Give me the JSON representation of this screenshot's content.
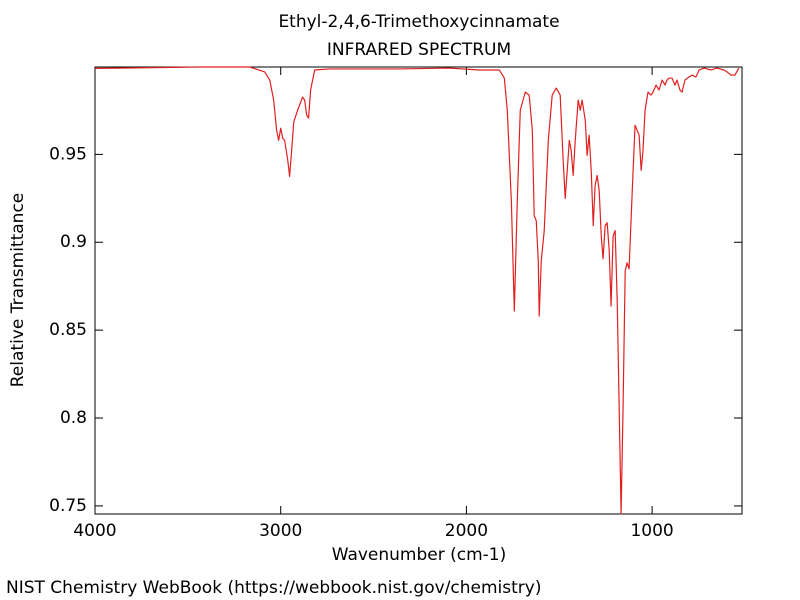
{
  "chart_data": {
    "type": "line",
    "title": "Ethyl-2,4,6-Trimethoxycinnamate",
    "subtitle": "INFRARED SPECTRUM",
    "xlabel": "Wavenumber (cm-1)",
    "ylabel": "Relative Transmittance",
    "source": "NIST Chemistry WebBook (https://webbook.nist.gov/chemistry)",
    "color": "#e02020",
    "xlim": [
      4000,
      516
    ],
    "ylim": [
      0.7454,
      0.9997
    ],
    "xticks": [
      4000,
      3000,
      2000,
      1000
    ],
    "yticks": [
      0.95,
      0.9,
      0.85,
      0.8,
      0.75
    ],
    "x": [
      4000,
      3436,
      3167,
      3086,
      3059,
      3038,
      3022,
      3011,
      3000,
      2989,
      2979,
      2962,
      2952,
      2941,
      2930,
      2909,
      2882,
      2871,
      2860,
      2850,
      2839,
      2817,
      2737,
      2360,
      2092,
      1930,
      1823,
      1796,
      1780,
      1758,
      1742,
      1726,
      1710,
      1683,
      1662,
      1645,
      1635,
      1624,
      1613,
      1608,
      1597,
      1581,
      1559,
      1538,
      1516,
      1495,
      1479,
      1468,
      1457,
      1446,
      1436,
      1425,
      1414,
      1398,
      1387,
      1377,
      1360,
      1350,
      1339,
      1328,
      1317,
      1307,
      1296,
      1285,
      1274,
      1264,
      1253,
      1242,
      1231,
      1221,
      1210,
      1199,
      1188,
      1178,
      1167,
      1156,
      1145,
      1135,
      1124,
      1108,
      1092,
      1070,
      1059,
      1049,
      1038,
      1022,
      1006,
      995,
      979,
      963,
      946,
      930,
      920,
      909,
      893,
      877,
      866,
      850,
      839,
      823,
      801,
      785,
      764,
      747,
      720,
      683,
      651,
      613,
      597,
      575,
      554,
      533
    ],
    "values": [
      0.9989,
      0.9997,
      0.9997,
      0.9969,
      0.9923,
      0.9809,
      0.9637,
      0.958,
      0.9649,
      0.9591,
      0.958,
      0.9466,
      0.9374,
      0.9523,
      0.9683,
      0.9751,
      0.9826,
      0.9809,
      0.9723,
      0.9706,
      0.9866,
      0.998,
      0.9986,
      0.9986,
      0.9991,
      0.998,
      0.998,
      0.9934,
      0.9751,
      0.9237,
      0.8609,
      0.9237,
      0.9751,
      0.9854,
      0.9837,
      0.9637,
      0.9151,
      0.9123,
      0.8894,
      0.858,
      0.8894,
      0.9066,
      0.958,
      0.9837,
      0.9877,
      0.9837,
      0.9466,
      0.9249,
      0.9409,
      0.958,
      0.9523,
      0.938,
      0.958,
      0.9809,
      0.9751,
      0.9809,
      0.9694,
      0.9494,
      0.9609,
      0.9409,
      0.9094,
      0.9323,
      0.938,
      0.9294,
      0.9037,
      0.8906,
      0.9094,
      0.9111,
      0.8951,
      0.8637,
      0.9037,
      0.9066,
      0.8666,
      0.8094,
      0.7454,
      0.8094,
      0.8837,
      0.8883,
      0.8849,
      0.9266,
      0.9666,
      0.9609,
      0.9409,
      0.9523,
      0.9751,
      0.9854,
      0.9837,
      0.9854,
      0.9894,
      0.9866,
      0.9923,
      0.9894,
      0.9923,
      0.9934,
      0.9934,
      0.9894,
      0.9923,
      0.9866,
      0.9854,
      0.9923,
      0.994,
      0.9951,
      0.994,
      0.998,
      0.9991,
      0.998,
      0.9991,
      0.998,
      0.9969,
      0.9951,
      0.9951,
      0.9991
    ]
  }
}
